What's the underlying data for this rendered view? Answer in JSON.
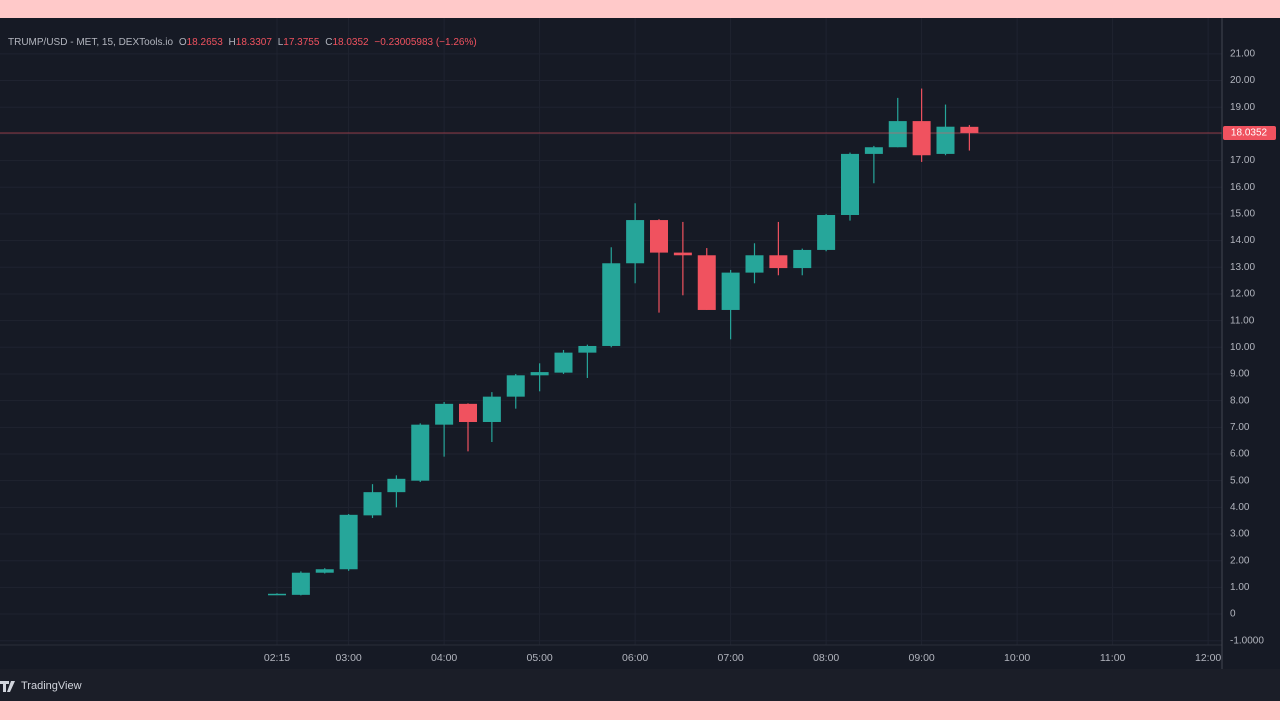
{
  "header": {
    "symbol": "TRUMP/USD - MET, 15, DEXTools.io",
    "open_label": "O",
    "high_label": "H",
    "low_label": "L",
    "close_label": "C",
    "change": "−0.23005983 (−1.26%)"
  },
  "chart_data": {
    "type": "candlestick",
    "x": [
      "02:15",
      "02:30",
      "02:45",
      "03:00",
      "03:15",
      "03:30",
      "03:45",
      "04:00",
      "04:15",
      "04:30",
      "04:45",
      "05:00",
      "05:15",
      "05:30",
      "05:45",
      "06:00",
      "06:15",
      "06:30",
      "06:45",
      "07:00",
      "07:15",
      "07:30",
      "07:45",
      "08:00",
      "08:15",
      "08:30",
      "08:45",
      "09:00",
      "09:15",
      "09:30"
    ],
    "open": [
      0.75,
      0.72,
      1.55,
      1.68,
      3.7,
      4.57,
      5.0,
      7.1,
      7.88,
      7.2,
      8.15,
      8.95,
      9.05,
      9.8,
      10.05,
      13.15,
      14.77,
      13.55,
      13.45,
      11.4,
      12.8,
      13.45,
      12.97,
      13.65,
      14.96,
      17.25,
      17.5,
      18.48,
      17.25,
      18.2653
    ],
    "high": [
      0.78,
      1.6,
      1.72,
      3.75,
      4.87,
      5.2,
      7.15,
      7.95,
      7.9,
      8.32,
      9.0,
      9.4,
      9.9,
      10.1,
      13.75,
      15.4,
      14.8,
      14.7,
      13.72,
      12.9,
      13.9,
      14.7,
      13.7,
      15.0,
      17.3,
      17.55,
      19.35,
      19.7,
      19.1,
      18.3307
    ],
    "low": [
      0.72,
      0.7,
      1.52,
      1.62,
      3.6,
      4.0,
      4.95,
      5.9,
      6.1,
      6.45,
      7.7,
      8.35,
      9.0,
      8.85,
      10.0,
      12.4,
      11.3,
      11.95,
      11.4,
      10.3,
      12.4,
      12.7,
      12.7,
      13.6,
      14.75,
      16.15,
      17.5,
      16.95,
      17.2,
      17.3755
    ],
    "close": [
      0.76,
      1.55,
      1.68,
      3.72,
      4.57,
      5.07,
      7.1,
      7.88,
      7.2,
      8.15,
      8.95,
      9.07,
      9.8,
      10.05,
      13.15,
      14.77,
      13.55,
      13.45,
      11.4,
      12.8,
      13.45,
      12.97,
      13.65,
      14.96,
      17.25,
      17.5,
      18.48,
      17.2,
      18.27,
      18.0352
    ],
    "up_color": "#26a69a",
    "down_color": "#f0525f",
    "ylim": [
      -1.16,
      21.97
    ],
    "yticks": [
      {
        "value": -1,
        "label": "-1.0000"
      },
      0,
      {
        "value": 1,
        "label": "1.00"
      },
      {
        "value": 2,
        "label": "2.00"
      },
      {
        "value": 3,
        "label": "3.00"
      },
      {
        "value": 4,
        "label": "4.00"
      },
      {
        "value": 5,
        "label": "5.00"
      },
      {
        "value": 6,
        "label": "6.00"
      },
      {
        "value": 7,
        "label": "7.00"
      },
      {
        "value": 8,
        "label": "8.00"
      },
      {
        "value": 9,
        "label": "9.00"
      },
      {
        "value": 10,
        "label": "10.00"
      },
      {
        "value": 11,
        "label": "11.00"
      },
      {
        "value": 12,
        "label": "12.00"
      },
      {
        "value": 13,
        "label": "13.00"
      },
      {
        "value": 14,
        "label": "14.00"
      },
      {
        "value": 15,
        "label": "15.00"
      },
      {
        "value": 16,
        "label": "16.00"
      },
      {
        "value": 17,
        "label": "17.00"
      },
      {
        "value": 18,
        "label": "18.00"
      },
      {
        "value": 19,
        "label": "19.00"
      },
      {
        "value": 20,
        "label": "20.00"
      },
      {
        "value": 21,
        "label": "21.00"
      }
    ],
    "xticks": [
      "02:15",
      "03:00",
      "04:00",
      "05:00",
      "06:00",
      "07:00",
      "08:00",
      "09:00",
      "10:00",
      "11:00",
      "12:00"
    ],
    "grid": true,
    "last_price_line": true
  },
  "footer": {
    "brand": "TradingView"
  }
}
